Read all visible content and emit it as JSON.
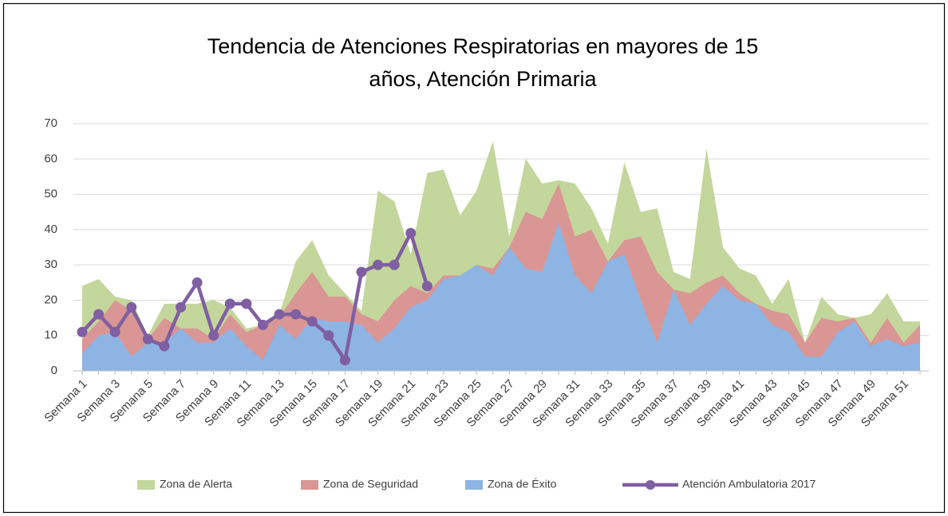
{
  "chart_data": {
    "type": "area",
    "title": [
      "Tendencia de Atenciones Respiratorias en mayores de 15",
      "años, Atención Primaria"
    ],
    "categories": [
      "Semana 1",
      null,
      "Semana 3",
      null,
      "Semana 5",
      null,
      "Semana 7",
      null,
      "Semana 9",
      null,
      "Semana 11",
      null,
      "Semana 13",
      null,
      "Semana 15",
      null,
      "Semana 17",
      null,
      "Semana 19",
      null,
      "Semana 21",
      null,
      "Semana 23",
      null,
      "Semana 25",
      null,
      "Semana 27",
      null,
      "Semana 29",
      null,
      "Semana 31",
      null,
      "Semana 33",
      null,
      "Semana 35",
      null,
      "Semana 37",
      null,
      "Semana 39",
      null,
      "Semana 41",
      null,
      "Semana 43",
      null,
      "Semana 45",
      null,
      "Semana 47",
      null,
      "Semana 49",
      null,
      "Semana 51",
      null
    ],
    "series": [
      {
        "name": "Zona de Alerta",
        "color": "#c3d69b",
        "kind": "area",
        "values": [
          24,
          26,
          21,
          20,
          10,
          19,
          19,
          19,
          20,
          18,
          12,
          13,
          16,
          31,
          37,
          27,
          22,
          17,
          51,
          48,
          33,
          56,
          57,
          44,
          51,
          65,
          38,
          60,
          53,
          54,
          53,
          46,
          36,
          59,
          45,
          46,
          28,
          26,
          63,
          35,
          29,
          27,
          19,
          26,
          8,
          21,
          16,
          15,
          16,
          22,
          14,
          14
        ]
      },
      {
        "name": "Zona de Seguridad",
        "color": "#d99694",
        "kind": "area",
        "values": [
          9,
          14,
          20,
          17,
          9,
          15,
          12,
          12,
          9,
          16,
          11,
          13,
          15,
          22,
          28,
          21,
          21,
          16,
          14,
          20,
          24,
          22,
          27,
          27,
          30,
          29,
          35,
          45,
          43,
          53,
          38,
          40,
          31,
          37,
          38,
          28,
          23,
          22,
          25,
          27,
          22,
          19,
          17,
          16,
          8,
          15,
          14,
          15,
          8,
          15,
          8,
          13
        ]
      },
      {
        "name": "Zona de Éxito",
        "color": "#8eb4e3",
        "kind": "area",
        "values": [
          5,
          10,
          11,
          4,
          8,
          8,
          12,
          8,
          8,
          12,
          7,
          3,
          13,
          9,
          15,
          14,
          14,
          13,
          8,
          12,
          18,
          20,
          26,
          27,
          30,
          27,
          35,
          29,
          28,
          42,
          27,
          22,
          31,
          33,
          20,
          8,
          23,
          13,
          19,
          24,
          20,
          19,
          13,
          11,
          4,
          4,
          11,
          14,
          7,
          9,
          7,
          8
        ]
      },
      {
        "name": "Atención Ambulatoria 2017",
        "color": "#7f5fa1",
        "kind": "line",
        "values": [
          11,
          16,
          11,
          18,
          9,
          7,
          18,
          25,
          10,
          19,
          19,
          13,
          16,
          16,
          14,
          10,
          3,
          28,
          30,
          30,
          39,
          24,
          null,
          null,
          null,
          null,
          null,
          null,
          null,
          null,
          null,
          null,
          null,
          null,
          null,
          null,
          null,
          null,
          null,
          null,
          null,
          null,
          null,
          null,
          null,
          null,
          null,
          null,
          null,
          null,
          null,
          null
        ]
      }
    ],
    "ylim": [
      0,
      70
    ],
    "yticks": [
      0,
      10,
      20,
      30,
      40,
      50,
      60,
      70
    ],
    "grid": true,
    "legend": "bottom"
  }
}
